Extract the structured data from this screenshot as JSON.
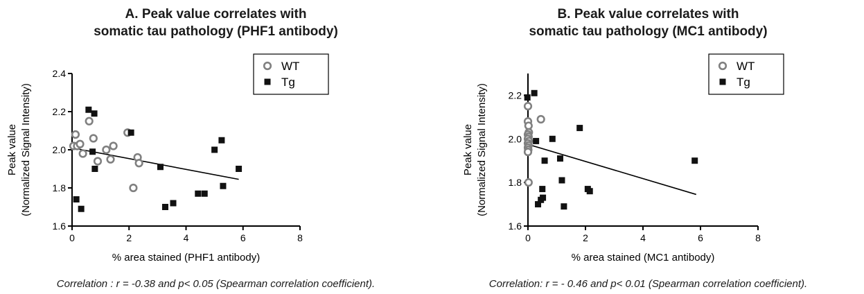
{
  "chart_data": [
    {
      "type": "scatter",
      "title_line1": "A. Peak value correlates with",
      "title_line2": "somatic tau pathology (PHF1 antibody)",
      "xlabel": "% area stained (PHF1 antibody)",
      "ylabel_line1": "Peak value",
      "ylabel_line2": "(Normalized Signal Intensity)",
      "xlim": [
        0,
        8
      ],
      "ylim": [
        1.6,
        2.4
      ],
      "xticks": [
        0,
        2,
        4,
        6,
        8
      ],
      "yticks": [
        1.6,
        1.8,
        2.0,
        2.2,
        2.4
      ],
      "ytick_labels": [
        "1.6",
        "1.8",
        "2.0",
        "2.2",
        "2.4"
      ],
      "legend_position": "top-right",
      "series": [
        {
          "name": "WT",
          "marker": "open-circle",
          "color": "#808080",
          "points": [
            [
              0.05,
              2.02
            ],
            [
              0.12,
              2.08
            ],
            [
              0.18,
              2.02
            ],
            [
              0.28,
              2.03
            ],
            [
              0.38,
              1.98
            ],
            [
              0.6,
              2.15
            ],
            [
              0.75,
              2.06
            ],
            [
              0.9,
              1.94
            ],
            [
              1.2,
              2.0
            ],
            [
              1.35,
              1.95
            ],
            [
              1.45,
              2.02
            ],
            [
              1.95,
              2.09
            ],
            [
              2.15,
              1.8
            ],
            [
              2.3,
              1.96
            ],
            [
              2.35,
              1.93
            ]
          ]
        },
        {
          "name": "Tg",
          "marker": "filled-square",
          "color": "#111111",
          "points": [
            [
              0.15,
              1.74
            ],
            [
              0.32,
              1.69
            ],
            [
              0.58,
              2.21
            ],
            [
              0.72,
              1.99
            ],
            [
              0.78,
              2.19
            ],
            [
              0.8,
              1.9
            ],
            [
              2.07,
              2.09
            ],
            [
              3.1,
              1.91
            ],
            [
              3.27,
              1.7
            ],
            [
              3.55,
              1.72
            ],
            [
              4.42,
              1.77
            ],
            [
              4.65,
              1.77
            ],
            [
              5.0,
              2.0
            ],
            [
              5.25,
              2.05
            ],
            [
              5.3,
              1.81
            ],
            [
              5.85,
              1.9
            ]
          ]
        }
      ],
      "fit_line": {
        "x": [
          0,
          5.85
        ],
        "y": [
          2.01,
          1.845
        ]
      },
      "caption": "Correlation : r = -0.38 and p< 0.05 (Spearman correlation coefficient)."
    },
    {
      "type": "scatter",
      "title_line1": "B. Peak value correlates with",
      "title_line2": "somatic tau pathology (MC1 antibody)",
      "xlabel": "% area stained (MC1 antibody)",
      "ylabel_line1": "Peak value",
      "ylabel_line2": "(Normalized Signal Intensity)",
      "xlim": [
        0,
        8
      ],
      "ylim": [
        1.6,
        2.3
      ],
      "xticks": [
        0,
        2,
        4,
        6,
        8
      ],
      "yticks": [
        1.6,
        1.8,
        2.0,
        2.2
      ],
      "ytick_labels": [
        "1.6",
        "1.8",
        "2.0",
        "2.2"
      ],
      "legend_position": "top-right",
      "series": [
        {
          "name": "WT",
          "marker": "open-circle",
          "color": "#808080",
          "points": [
            [
              0.0,
              2.15
            ],
            [
              0.0,
              2.08
            ],
            [
              0.02,
              2.06
            ],
            [
              0.03,
              2.03
            ],
            [
              0.0,
              2.02
            ],
            [
              0.02,
              2.01
            ],
            [
              0.0,
              2.0
            ],
            [
              0.03,
              1.99
            ],
            [
              0.0,
              1.98
            ],
            [
              0.02,
              1.97
            ],
            [
              0.0,
              1.96
            ],
            [
              0.01,
              1.95
            ],
            [
              0.0,
              1.94
            ],
            [
              0.02,
              1.8
            ],
            [
              0.45,
              2.09
            ]
          ]
        },
        {
          "name": "Tg",
          "marker": "filled-square",
          "color": "#111111",
          "points": [
            [
              -0.02,
              2.19
            ],
            [
              0.22,
              2.21
            ],
            [
              0.28,
              1.99
            ],
            [
              0.35,
              1.7
            ],
            [
              0.45,
              1.72
            ],
            [
              0.5,
              1.77
            ],
            [
              0.52,
              1.73
            ],
            [
              0.58,
              1.9
            ],
            [
              0.85,
              2.0
            ],
            [
              1.12,
              1.91
            ],
            [
              1.18,
              1.81
            ],
            [
              1.25,
              1.69
            ],
            [
              1.8,
              2.05
            ],
            [
              2.08,
              1.77
            ],
            [
              2.15,
              1.76
            ],
            [
              5.8,
              1.9
            ]
          ]
        }
      ],
      "fit_line": {
        "x": [
          0,
          5.85
        ],
        "y": [
          1.975,
          1.745
        ]
      },
      "caption": "Correlation: r = - 0.46 and p< 0.01 (Spearman correlation coefficient)."
    }
  ]
}
